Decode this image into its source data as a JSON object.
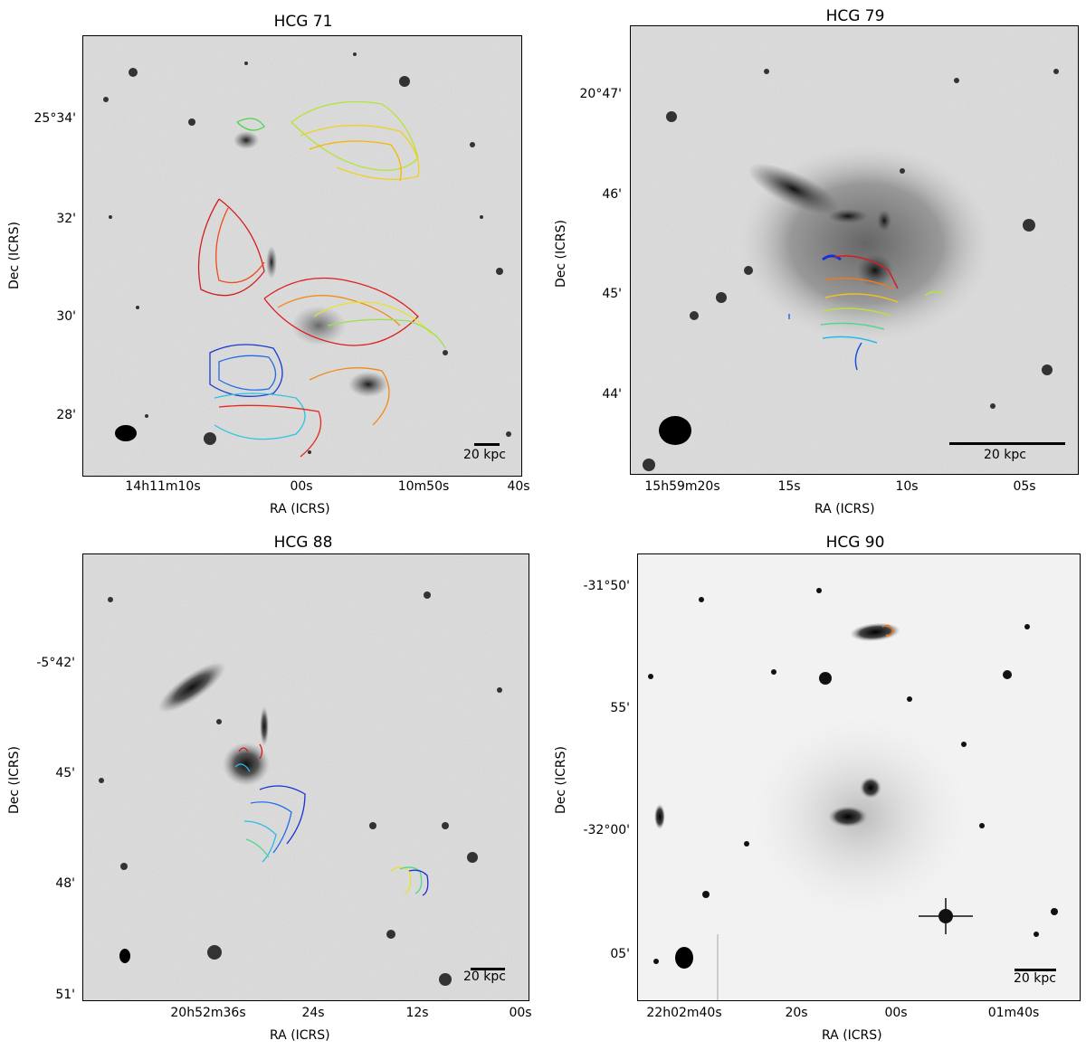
{
  "figure": {
    "panels": [
      {
        "title": "HCG 71",
        "xlabel": "RA (ICRS)",
        "ylabel": "Dec (ICRS)",
        "xticks": [
          "14h11m10s",
          "00s",
          "10m50s",
          "40s"
        ],
        "yticks": [
          "25°34'",
          "32'",
          "30'",
          "28'"
        ],
        "scalebar": "20 kpc"
      },
      {
        "title": "HCG 79",
        "xlabel": "RA (ICRS)",
        "ylabel": "Dec (ICRS)",
        "xticks": [
          "15h59m20s",
          "15s",
          "10s",
          "05s"
        ],
        "yticks": [
          "20°47'",
          "46'",
          "45'",
          "44'"
        ],
        "scalebar": "20 kpc"
      },
      {
        "title": "HCG 88",
        "xlabel": "RA (ICRS)",
        "ylabel": "Dec (ICRS)",
        "xticks": [
          "20h52m36s",
          "24s",
          "12s",
          "00s"
        ],
        "yticks": [
          "-5°42'",
          "45'",
          "48'",
          "51'"
        ],
        "scalebar": "20 kpc"
      },
      {
        "title": "HCG 90",
        "xlabel": "RA (ICRS)",
        "ylabel": "Dec (ICRS)",
        "xticks": [
          "22h02m40s",
          "20s",
          "00s",
          "01m40s"
        ],
        "yticks": [
          "-31°50'",
          "55'",
          "-32°00'",
          "05'"
        ],
        "scalebar": "20 kpc"
      }
    ],
    "colors": {
      "contour_colormap": "jet",
      "background": "grayscale"
    }
  }
}
